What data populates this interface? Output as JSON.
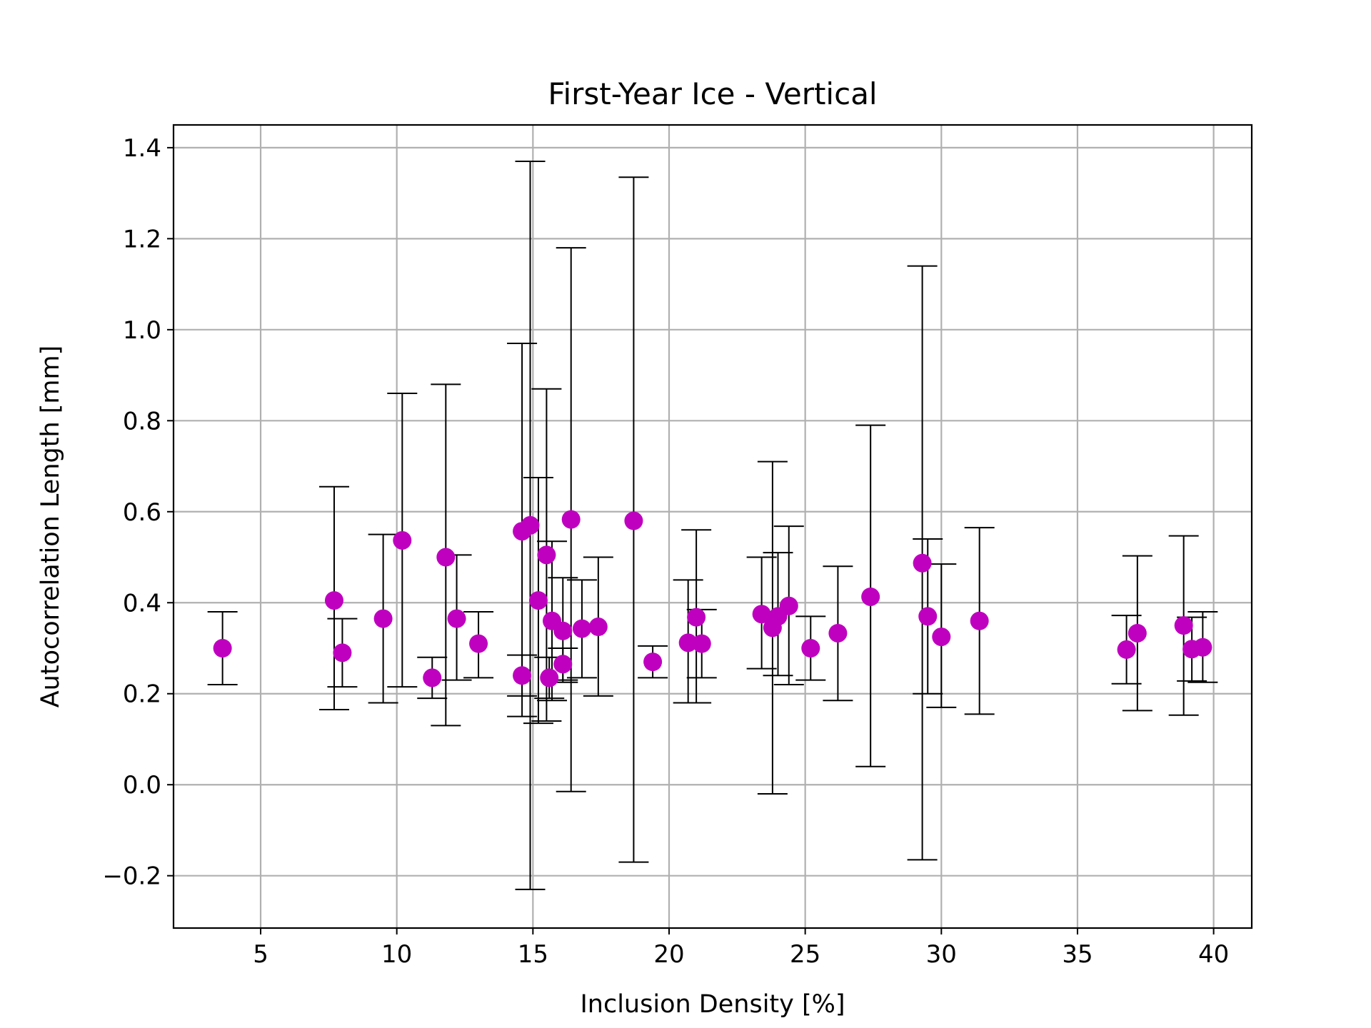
{
  "chart_data": {
    "type": "scatter",
    "title": "First-Year Ice - Vertical",
    "xlabel": "Inclusion Density [%]",
    "ylabel": "Autocorrelation Length [mm]",
    "xlim": [
      1.8,
      41.4
    ],
    "ylim": [
      -0.315,
      1.45
    ],
    "xticks": [
      5,
      10,
      15,
      20,
      25,
      30,
      35,
      40
    ],
    "xtick_labels": [
      "5",
      "10",
      "15",
      "20",
      "25",
      "30",
      "35",
      "40"
    ],
    "yticks": [
      -0.2,
      0.0,
      0.2,
      0.4,
      0.6,
      0.8,
      1.0,
      1.2,
      1.4
    ],
    "ytick_labels": [
      "−0.2",
      "0.0",
      "0.2",
      "0.4",
      "0.6",
      "0.8",
      "1.0",
      "1.2",
      "1.4"
    ],
    "grid": true,
    "marker_color": "#bf00bf",
    "errorbar_color": "#000000",
    "points": [
      {
        "x": 3.6,
        "y": 0.3,
        "ylow": 0.22,
        "yhigh": 0.38
      },
      {
        "x": 7.7,
        "y": 0.405,
        "ylow": 0.165,
        "yhigh": 0.655
      },
      {
        "x": 8.0,
        "y": 0.29,
        "ylow": 0.215,
        "yhigh": 0.365
      },
      {
        "x": 9.5,
        "y": 0.365,
        "ylow": 0.18,
        "yhigh": 0.55
      },
      {
        "x": 10.2,
        "y": 0.537,
        "ylow": 0.215,
        "yhigh": 0.86
      },
      {
        "x": 11.3,
        "y": 0.235,
        "ylow": 0.19,
        "yhigh": 0.28
      },
      {
        "x": 11.8,
        "y": 0.5,
        "ylow": 0.13,
        "yhigh": 0.88
      },
      {
        "x": 12.2,
        "y": 0.365,
        "ylow": 0.23,
        "yhigh": 0.505
      },
      {
        "x": 13.0,
        "y": 0.31,
        "ylow": 0.235,
        "yhigh": 0.38
      },
      {
        "x": 14.6,
        "y": 0.557,
        "ylow": 0.15,
        "yhigh": 0.97
      },
      {
        "x": 14.9,
        "y": 0.57,
        "ylow": -0.23,
        "yhigh": 1.37
      },
      {
        "x": 14.6,
        "y": 0.24,
        "ylow": 0.195,
        "yhigh": 0.285
      },
      {
        "x": 15.2,
        "y": 0.405,
        "ylow": 0.135,
        "yhigh": 0.675
      },
      {
        "x": 15.5,
        "y": 0.505,
        "ylow": 0.14,
        "yhigh": 0.87
      },
      {
        "x": 15.7,
        "y": 0.36,
        "ylow": 0.185,
        "yhigh": 0.535
      },
      {
        "x": 15.6,
        "y": 0.235,
        "ylow": 0.19,
        "yhigh": 0.28
      },
      {
        "x": 16.1,
        "y": 0.338,
        "ylow": 0.225,
        "yhigh": 0.455
      },
      {
        "x": 16.1,
        "y": 0.265,
        "ylow": 0.23,
        "yhigh": 0.3
      },
      {
        "x": 16.4,
        "y": 0.583,
        "ylow": -0.015,
        "yhigh": 1.18
      },
      {
        "x": 16.8,
        "y": 0.343,
        "ylow": 0.235,
        "yhigh": 0.45
      },
      {
        "x": 17.4,
        "y": 0.347,
        "ylow": 0.195,
        "yhigh": 0.5
      },
      {
        "x": 18.7,
        "y": 0.58,
        "ylow": -0.17,
        "yhigh": 1.335
      },
      {
        "x": 19.4,
        "y": 0.27,
        "ylow": 0.235,
        "yhigh": 0.305
      },
      {
        "x": 20.7,
        "y": 0.312,
        "ylow": 0.18,
        "yhigh": 0.45
      },
      {
        "x": 21.0,
        "y": 0.368,
        "ylow": 0.18,
        "yhigh": 0.56
      },
      {
        "x": 21.2,
        "y": 0.31,
        "ylow": 0.235,
        "yhigh": 0.385
      },
      {
        "x": 23.4,
        "y": 0.375,
        "ylow": 0.255,
        "yhigh": 0.5
      },
      {
        "x": 23.8,
        "y": 0.345,
        "ylow": -0.02,
        "yhigh": 0.71
      },
      {
        "x": 24.0,
        "y": 0.37,
        "ylow": 0.24,
        "yhigh": 0.51
      },
      {
        "x": 24.4,
        "y": 0.393,
        "ylow": 0.22,
        "yhigh": 0.568
      },
      {
        "x": 25.2,
        "y": 0.3,
        "ylow": 0.23,
        "yhigh": 0.37
      },
      {
        "x": 26.2,
        "y": 0.333,
        "ylow": 0.185,
        "yhigh": 0.48
      },
      {
        "x": 27.4,
        "y": 0.413,
        "ylow": 0.04,
        "yhigh": 0.79
      },
      {
        "x": 29.3,
        "y": 0.487,
        "ylow": -0.165,
        "yhigh": 1.14
      },
      {
        "x": 29.5,
        "y": 0.37,
        "ylow": 0.2,
        "yhigh": 0.54
      },
      {
        "x": 30.0,
        "y": 0.325,
        "ylow": 0.17,
        "yhigh": 0.485
      },
      {
        "x": 31.4,
        "y": 0.36,
        "ylow": 0.155,
        "yhigh": 0.565
      },
      {
        "x": 36.8,
        "y": 0.297,
        "ylow": 0.222,
        "yhigh": 0.372
      },
      {
        "x": 37.2,
        "y": 0.333,
        "ylow": 0.163,
        "yhigh": 0.503
      },
      {
        "x": 38.9,
        "y": 0.35,
        "ylow": 0.153,
        "yhigh": 0.547
      },
      {
        "x": 39.2,
        "y": 0.298,
        "ylow": 0.228,
        "yhigh": 0.368
      },
      {
        "x": 39.6,
        "y": 0.302,
        "ylow": 0.225,
        "yhigh": 0.38
      }
    ]
  }
}
